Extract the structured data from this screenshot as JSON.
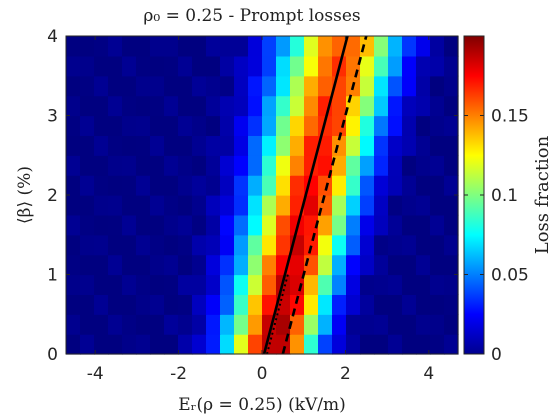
{
  "chart_data": {
    "type": "heatmap",
    "title": "ρ₀ = 0.25 - Prompt losses",
    "xlabel": "Eᵣ(ρ = 0.25) (kV/m)",
    "ylabel": "⟨β⟩ (%)",
    "colorbar_label": "Loss fraction",
    "colormap": "jet",
    "xlim": [
      -4.7,
      4.7
    ],
    "ylim": [
      0,
      4
    ],
    "clim": [
      0,
      0.2
    ],
    "x_ticks": [
      "-4",
      "-2",
      "0",
      "2",
      "4"
    ],
    "x_tick_values": [
      -4,
      -2,
      0,
      2,
      4
    ],
    "y_ticks": [
      "0",
      "1",
      "2",
      "3",
      "4"
    ],
    "y_tick_values": [
      0,
      1,
      2,
      3,
      4
    ],
    "colorbar_ticks": [
      "0",
      "0.05",
      "0.1",
      "0.15"
    ],
    "colorbar_tick_values": [
      0,
      0.05,
      0.1,
      0.15
    ],
    "grid": false,
    "lines": [
      {
        "style": "solid",
        "color": "#000000",
        "x": [
          0.05,
          2.05
        ],
        "y": [
          0,
          4
        ]
      },
      {
        "style": "dashed",
        "color": "#000000",
        "x": [
          0.5,
          2.5
        ],
        "y": [
          0,
          4
        ]
      },
      {
        "style": "dotted",
        "color": "#000000",
        "x": [
          0.12,
          0.62
        ],
        "y": [
          0,
          1
        ]
      }
    ]
  }
}
